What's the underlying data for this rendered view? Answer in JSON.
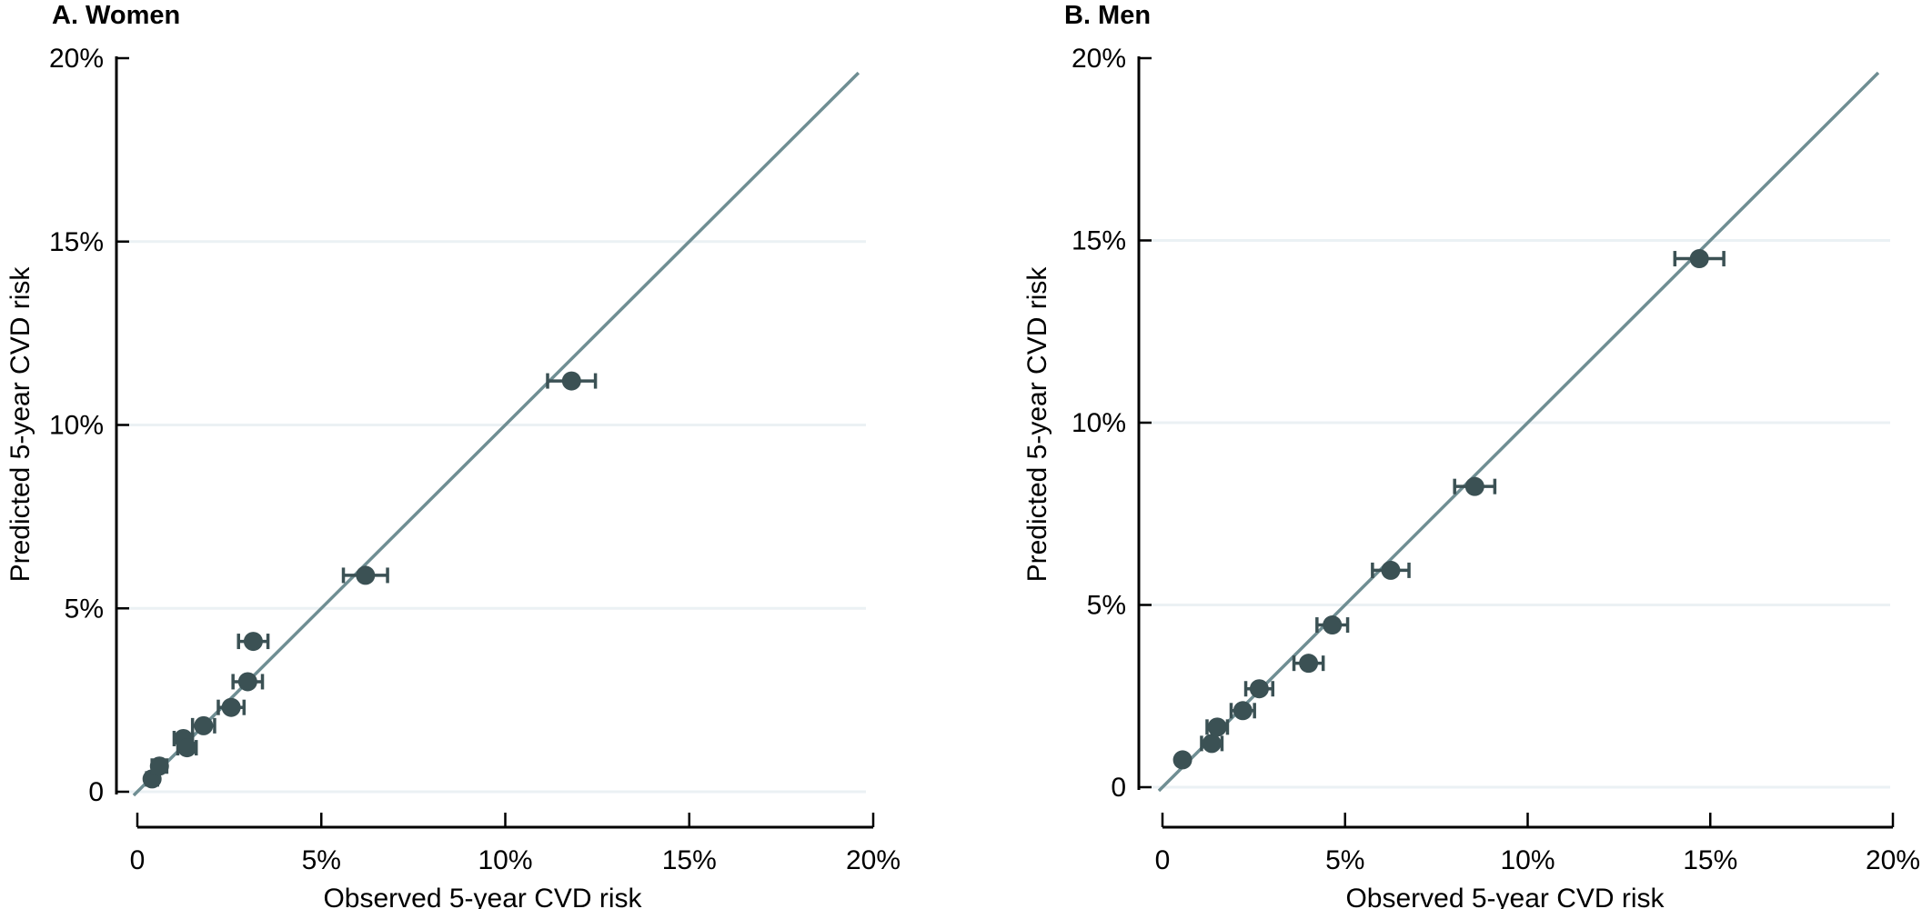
{
  "figure": {
    "background_color": "#ffffff",
    "axis_color": "#000000",
    "text_color": "#000000",
    "marker_color": "#3b5154",
    "identity_line_color": "#6f8e93",
    "gridline_color": "#ebf1f4"
  },
  "chart_data": [
    {
      "type": "scatter",
      "title": "A. Women",
      "xlabel": "Observed 5-year CVD risk",
      "ylabel": "Predicted 5-year CVD risk",
      "xlim": [
        0,
        20
      ],
      "ylim": [
        0,
        20
      ],
      "x_tick_values": [
        0,
        5,
        10,
        15,
        20
      ],
      "x_tick_labels": [
        "0",
        "5%",
        "10%",
        "15%",
        "20%"
      ],
      "y_tick_values": [
        0,
        5,
        10,
        15,
        20
      ],
      "y_tick_labels": [
        "0",
        "5%",
        "10%",
        "15%",
        "20%"
      ],
      "gridline_values": [
        0,
        5,
        10,
        15
      ],
      "grid": "horizontal-only",
      "legend": "none",
      "identity_line": {
        "x_start": -0.1,
        "x_end": 19.6
      },
      "points": [
        {
          "observed": 0.4,
          "predicted": 0.35,
          "ci_half_width": 0.15
        },
        {
          "observed": 0.6,
          "predicted": 0.7,
          "ci_half_width": 0.2
        },
        {
          "observed": 1.25,
          "predicted": 1.45,
          "ci_half_width": 0.25
        },
        {
          "observed": 1.35,
          "predicted": 1.2,
          "ci_half_width": 0.25
        },
        {
          "observed": 1.8,
          "predicted": 1.8,
          "ci_half_width": 0.3
        },
        {
          "observed": 2.55,
          "predicted": 2.3,
          "ci_half_width": 0.35
        },
        {
          "observed": 3.0,
          "predicted": 3.0,
          "ci_half_width": 0.4
        },
        {
          "observed": 3.15,
          "predicted": 4.1,
          "ci_half_width": 0.4
        },
        {
          "observed": 6.2,
          "predicted": 5.9,
          "ci_half_width": 0.6
        },
        {
          "observed": 11.8,
          "predicted": 11.2,
          "ci_half_width": 0.65
        }
      ]
    },
    {
      "type": "scatter",
      "title": "B. Men",
      "xlabel": "Observed 5-year CVD risk",
      "ylabel": "Predicted 5-year CVD risk",
      "xlim": [
        0,
        20
      ],
      "ylim": [
        0,
        20
      ],
      "x_tick_values": [
        0,
        5,
        10,
        15,
        20
      ],
      "x_tick_labels": [
        "0",
        "5%",
        "10%",
        "15%",
        "20%"
      ],
      "y_tick_values": [
        0,
        5,
        10,
        15,
        20
      ],
      "y_tick_labels": [
        "0",
        "5%",
        "10%",
        "15%",
        "20%"
      ],
      "gridline_values": [
        0,
        5,
        10,
        15
      ],
      "grid": "horizontal-only",
      "legend": "none",
      "identity_line": {
        "x_start": -0.1,
        "x_end": 19.6
      },
      "points": [
        {
          "observed": 0.55,
          "predicted": 0.75,
          "ci_half_width": 0.1
        },
        {
          "observed": 1.35,
          "predicted": 1.2,
          "ci_half_width": 0.28
        },
        {
          "observed": 1.5,
          "predicted": 1.65,
          "ci_half_width": 0.28
        },
        {
          "observed": 2.2,
          "predicted": 2.1,
          "ci_half_width": 0.32
        },
        {
          "observed": 2.65,
          "predicted": 2.7,
          "ci_half_width": 0.37
        },
        {
          "observed": 4.0,
          "predicted": 3.4,
          "ci_half_width": 0.4
        },
        {
          "observed": 4.65,
          "predicted": 4.45,
          "ci_half_width": 0.42
        },
        {
          "observed": 6.25,
          "predicted": 5.95,
          "ci_half_width": 0.5
        },
        {
          "observed": 8.55,
          "predicted": 8.25,
          "ci_half_width": 0.55
        },
        {
          "observed": 14.7,
          "predicted": 14.5,
          "ci_half_width": 0.67
        }
      ]
    }
  ]
}
